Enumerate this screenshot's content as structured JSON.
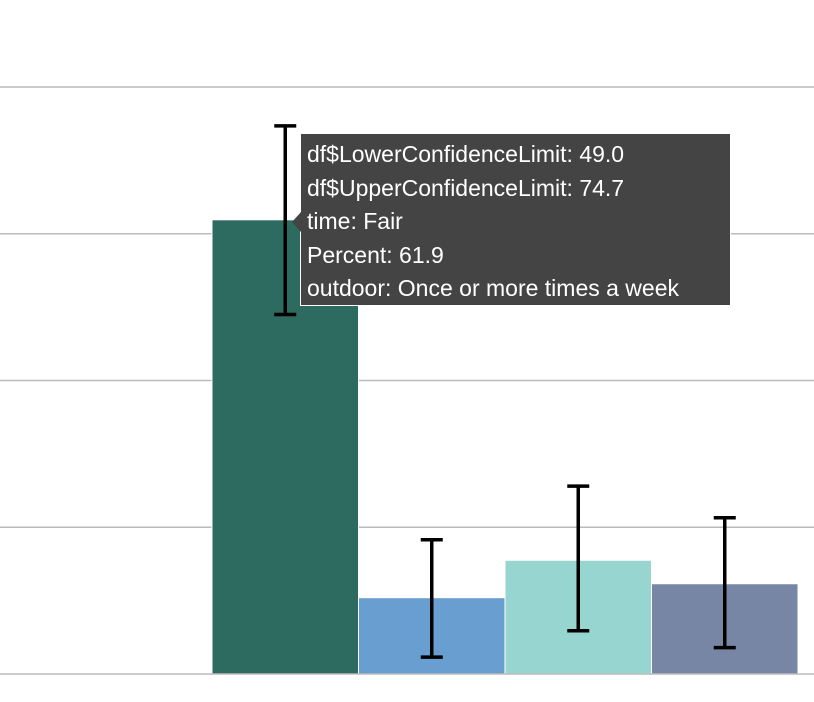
{
  "chart_data": {
    "type": "bar",
    "categories": [
      "Fair"
    ],
    "series": [
      {
        "name": "Once or more times a week",
        "values": [
          61.9
        ],
        "lower": [
          49.0
        ],
        "upper": [
          74.7
        ],
        "color": "#2d6a60"
      },
      {
        "values": [
          10.4
        ],
        "lower": [
          2.3
        ],
        "upper": [
          18.3
        ],
        "color": "#699fd0"
      },
      {
        "values": [
          15.5
        ],
        "lower": [
          5.9
        ],
        "upper": [
          25.6
        ],
        "color": "#97d6d0"
      },
      {
        "values": [
          12.3
        ],
        "lower": [
          3.6
        ],
        "upper": [
          21.3
        ],
        "color": "#7786a5"
      }
    ],
    "ylim": [
      0,
      80
    ],
    "grid": true,
    "grid_color": "#bbbbbb",
    "error_bar_color": "#000000"
  },
  "tooltip": {
    "lower_label": "df$LowerConfidenceLimit: 49.0",
    "upper_label": "df$UpperConfidenceLimit: 74.7",
    "time_label": "time: Fair",
    "percent_label": "Percent: 61.9",
    "outdoor_label": "outdoor: Once or more times a week"
  }
}
